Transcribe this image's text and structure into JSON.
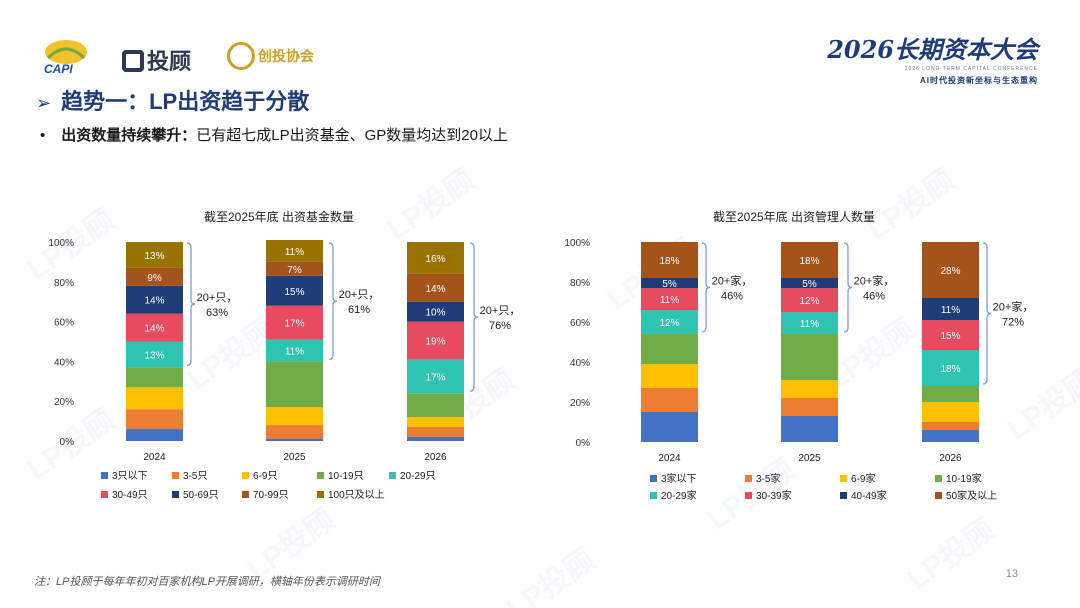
{
  "logos": {
    "capi": "CAPI",
    "lp": "投顾",
    "assoc": "创投协会",
    "conf_title": "2026长期资本大会",
    "conf_sub_en": "2026 LONG TERM CAPITAL CONFERENCE",
    "conf_sub_cn": "AI时代投资新坐标与生态重构"
  },
  "heading": "趋势一：LP出资趋于分散",
  "subheading": {
    "bold": "出资数量持续攀升：",
    "text": "已有超七成LP出资基金、GP数量均达到20以上"
  },
  "watermark": "LP投顾",
  "footnote": "注：LP投顾于每年年初对百家机构LP开展调研，横轴年份表示调研时间",
  "page_number": "13",
  "colors": {
    "title": "#1f3c78",
    "bracket": "#7f9ed8"
  },
  "chart_data": [
    {
      "type": "bar",
      "stacked": true,
      "title": "截至2025年底 出资基金数量",
      "categories": [
        "2024",
        "2025",
        "2026"
      ],
      "ylim": [
        0,
        100
      ],
      "yticks": [
        "0%",
        "20%",
        "40%",
        "60%",
        "80%",
        "100%"
      ],
      "series": [
        {
          "name": "3只以下",
          "color": "#4472c4",
          "values": [
            6,
            1,
            2
          ]
        },
        {
          "name": "3-5只",
          "color": "#ed7d31",
          "values": [
            10,
            7,
            5
          ]
        },
        {
          "name": "6-9只",
          "color": "#ffc000",
          "values": [
            11,
            9,
            5
          ]
        },
        {
          "name": "10-19只",
          "color": "#70ad47",
          "values": [
            10,
            23,
            12
          ]
        },
        {
          "name": "20-29只",
          "color": "#2fc4b2",
          "values": [
            13,
            11,
            17
          ]
        },
        {
          "name": "30-49只",
          "color": "#e84a5f",
          "values": [
            14,
            17,
            19
          ]
        },
        {
          "name": "50-69只",
          "color": "#1f3c78",
          "values": [
            14,
            15,
            10
          ]
        },
        {
          "name": "70-99只",
          "color": "#a5521b",
          "values": [
            9,
            7,
            14
          ]
        },
        {
          "name": "100只及以上",
          "color": "#997300",
          "values": [
            13,
            11,
            16
          ]
        }
      ],
      "labels": [
        [
          "",
          "",
          "",
          "",
          "13%",
          "14%",
          "14%",
          "9%",
          "13%"
        ],
        [
          "",
          "",
          "",
          "",
          "11%",
          "17%",
          "15%",
          "7%",
          "11%"
        ],
        [
          "",
          "",
          "",
          "",
          "17%",
          "19%",
          "10%",
          "14%",
          "16%"
        ]
      ],
      "brackets": [
        {
          "line1": "20+只，",
          "line2": "63%"
        },
        {
          "line1": "20+只，",
          "line2": "61%"
        },
        {
          "line1": "20+只，",
          "line2": "76%"
        }
      ]
    },
    {
      "type": "bar",
      "stacked": true,
      "title": "截至2025年底 出资管理人数量",
      "categories": [
        "2024",
        "2025",
        "2026"
      ],
      "ylim": [
        0,
        100
      ],
      "yticks": [
        "0%",
        "20%",
        "40%",
        "60%",
        "80%",
        "100%"
      ],
      "series": [
        {
          "name": "3家以下",
          "color": "#4472c4",
          "values": [
            15,
            13,
            6
          ]
        },
        {
          "name": "3-5家",
          "color": "#ed7d31",
          "values": [
            12,
            9,
            4
          ]
        },
        {
          "name": "6-9家",
          "color": "#ffc000",
          "values": [
            12,
            9,
            10
          ]
        },
        {
          "name": "10-19家",
          "color": "#70ad47",
          "values": [
            15,
            23,
            8
          ]
        },
        {
          "name": "20-29家",
          "color": "#2fc4b2",
          "values": [
            12,
            11,
            18
          ]
        },
        {
          "name": "30-39家",
          "color": "#e84a5f",
          "values": [
            11,
            12,
            15
          ]
        },
        {
          "name": "40-49家",
          "color": "#1f3c78",
          "values": [
            5,
            5,
            11
          ]
        },
        {
          "name": "50家及以上",
          "color": "#a5521b",
          "values": [
            18,
            18,
            28
          ]
        }
      ],
      "labels": [
        [
          "",
          "",
          "",
          "",
          "12%",
          "11%",
          "5%",
          "18%"
        ],
        [
          "",
          "",
          "",
          "",
          "11%",
          "12%",
          "5%",
          "18%"
        ],
        [
          "",
          "",
          "",
          "",
          "18%",
          "15%",
          "11%",
          "28%"
        ]
      ],
      "brackets": [
        {
          "line1": "20+家，",
          "line2": "46%"
        },
        {
          "line1": "20+家，",
          "line2": "46%"
        },
        {
          "line1": "20+家，",
          "line2": "72%"
        }
      ]
    }
  ]
}
